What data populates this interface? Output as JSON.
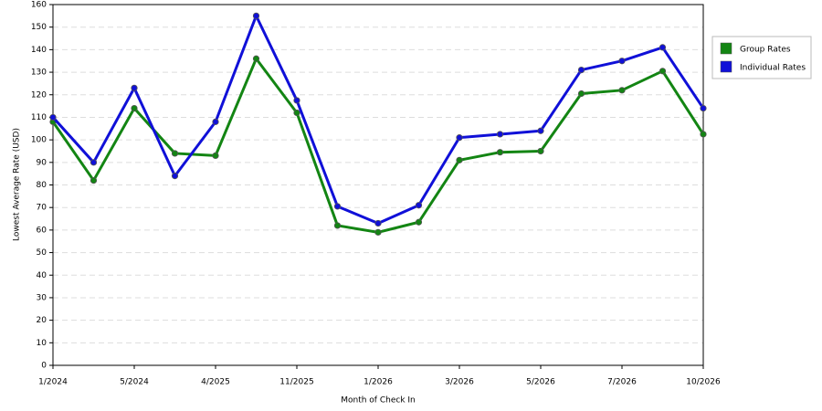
{
  "chart_data": {
    "type": "line",
    "x_label": "Month of Check In",
    "y_label": "Lowest Average Rate (USD)",
    "categories": [
      "1/2024",
      null,
      "5/2024",
      null,
      "4/2025",
      null,
      "11/2025",
      null,
      "1/2026",
      null,
      "3/2026",
      null,
      "5/2026",
      null,
      "7/2026",
      null,
      "10/2026"
    ],
    "series": [
      {
        "name": "Group Rates",
        "color": "#138513",
        "values": [
          108,
          82,
          114,
          94,
          93,
          136,
          112,
          62,
          59,
          63.5,
          91,
          94.5,
          95,
          120.5,
          122,
          130.5,
          102.5
        ]
      },
      {
        "name": "Individual Rates",
        "color": "#1010d8",
        "values": [
          110,
          90,
          123,
          84,
          108,
          155,
          117.5,
          70.5,
          63,
          71,
          101,
          102.5,
          104,
          131,
          135,
          141,
          114
        ]
      }
    ],
    "ylim": [
      0,
      160
    ],
    "yticks": [
      0,
      10,
      20,
      30,
      40,
      50,
      60,
      70,
      80,
      90,
      100,
      110,
      120,
      130,
      140,
      150,
      160
    ],
    "grid": true,
    "legend": "right"
  }
}
